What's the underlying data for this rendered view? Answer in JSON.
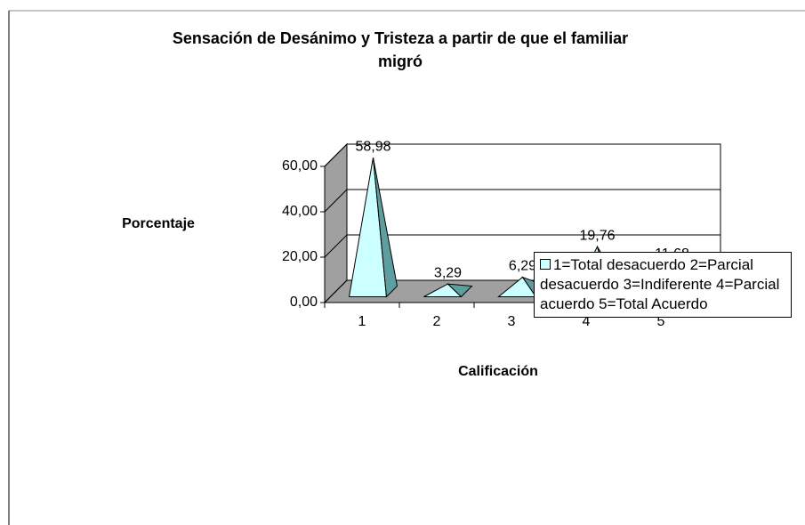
{
  "chart_data": {
    "type": "pyramid3d",
    "title": "Sensación de  Desánimo y  Tristeza a partir  de que  el familiar  migró",
    "x_label": "Calificación",
    "y_label": "Porcentaje",
    "categories": [
      "1",
      "2",
      "3",
      "4",
      "5"
    ],
    "series": [
      {
        "name": "1=Total desacuerdo 2=Parcial  desacuerdo 3=Indiferente 4=Parcial acuerdo 5=Total  Acuerdo",
        "color": "#ccffff",
        "values": [
          58.98,
          3.29,
          6.29,
          19.76,
          11.68
        ],
        "value_labels": [
          "58,98",
          "3,29",
          "6,29",
          "19,76",
          "11,68"
        ]
      }
    ],
    "ylim": [
      0,
      60
    ],
    "yticks": [
      {
        "value": 0,
        "label": "0,00"
      },
      {
        "value": 20,
        "label": "20,00"
      },
      {
        "value": 40,
        "label": "40,00"
      },
      {
        "value": 60,
        "label": "60,00"
      }
    ],
    "grid": true
  }
}
